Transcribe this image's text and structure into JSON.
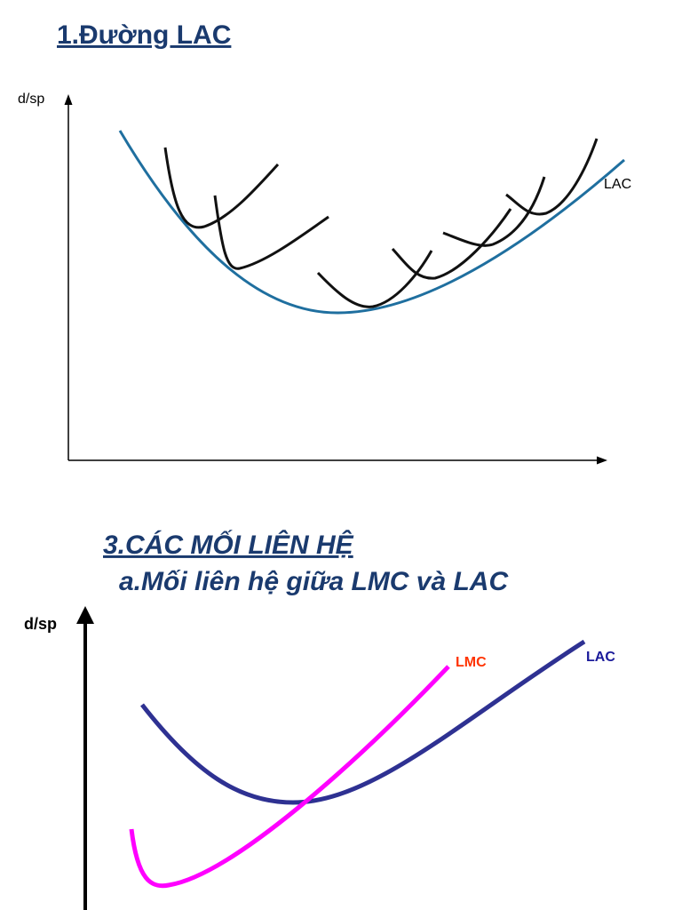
{
  "section1": {
    "title": "1.Đường LAC",
    "y_axis_label": "d/sp",
    "curve_label": "LAC"
  },
  "section3": {
    "title": "3.CÁC MỐI LIÊN HỆ",
    "subtitle": "a.Mối liên hệ giữa LMC và LAC",
    "y_axis_label": "d/sp",
    "lmc_label": "LMC",
    "lac_label": "LAC"
  }
}
